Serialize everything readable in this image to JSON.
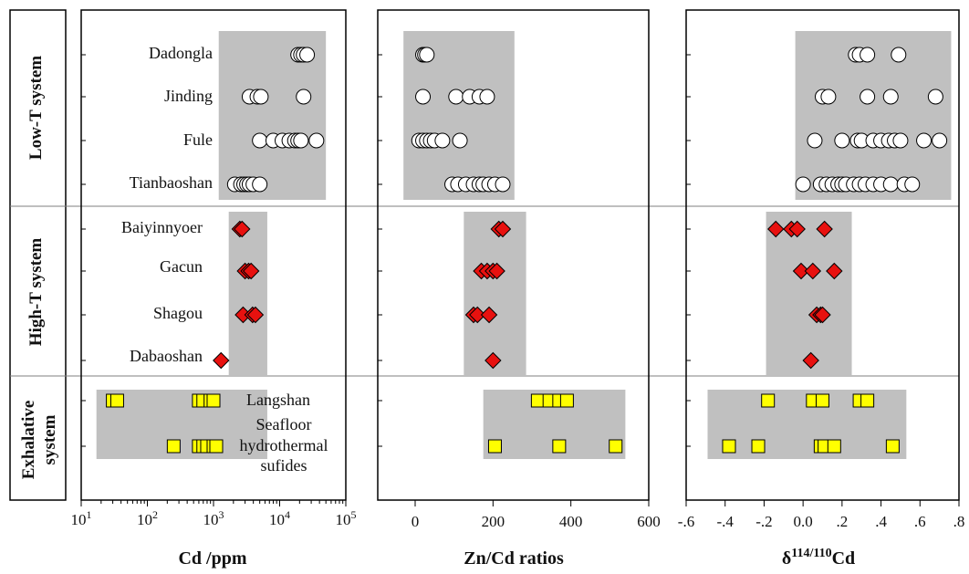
{
  "group_labels": {
    "low": "Low-T system",
    "high": "High-T system",
    "exhalative_line1": "Exhalative",
    "exhalative_line2": "system"
  },
  "panel_labels": {
    "low": [
      "Dadongla",
      "Jinding",
      "Fule",
      "Tianbaoshan"
    ],
    "high": [
      "Baiyinnyoer",
      "Gacun",
      "Shagou",
      "Dabaoshan"
    ],
    "exhalative_langshan": "Langshan",
    "exhalative_seafloor": [
      "Seafloor",
      "hydrothermal",
      "sufides"
    ]
  },
  "axis_labels": {
    "cd": "Cd /ppm",
    "zncd": "Zn/Cd ratios",
    "delta_prefix": "δ",
    "delta_sup": "114/110",
    "delta_suffix": "Cd"
  },
  "ticks": {
    "cd_base": "10",
    "cd_exponents": [
      "1",
      "2",
      "3",
      "4",
      "5"
    ],
    "zncd": [
      "0",
      "200",
      "400",
      "600"
    ],
    "delta": [
      "-.6",
      "-.4",
      "-.2",
      "0.0",
      ".2",
      ".4",
      ".6",
      ".8"
    ]
  },
  "colors": {
    "band": "#c0c0c0",
    "low_marker_fill": "#ffffff",
    "high_marker_fill": "#e8110f",
    "exhalative_marker_fill": "#ffff00",
    "marker_stroke": "#000000",
    "separator": "#7f7f7f"
  },
  "chart_data": [
    {
      "type": "scatter",
      "title": "",
      "xlabel": "Cd /ppm",
      "xscale": "log",
      "xlim": [
        10,
        100000
      ],
      "categories": [
        "Dadongla",
        "Jinding",
        "Fule",
        "Tianbaoshan",
        "Baiyinnyoer",
        "Gacun",
        "Shagou",
        "Dabaoshan",
        "Langshan",
        "Seafloor hydrothermal sufides"
      ],
      "bands": [
        {
          "group": "Low-T system",
          "x_range": [
            1200,
            50000
          ]
        },
        {
          "group": "High-T system",
          "x_range": [
            1700,
            6500
          ]
        },
        {
          "group": "Exhalative system",
          "x_range": [
            17,
            6500
          ]
        }
      ],
      "series": [
        {
          "name": "Dadongla",
          "marker": "circle",
          "values": [
            19000,
            21000,
            23000,
            26000
          ]
        },
        {
          "name": "Jinding",
          "marker": "circle",
          "values": [
            3500,
            4600,
            5200,
            23000
          ]
        },
        {
          "name": "Fule",
          "marker": "circle",
          "values": [
            5000,
            8000,
            11000,
            14000,
            17000,
            19000,
            21000,
            36000
          ]
        },
        {
          "name": "Tianbaoshan",
          "marker": "circle",
          "values": [
            2100,
            2600,
            2900,
            3200,
            3500,
            4000,
            5000
          ]
        },
        {
          "name": "Baiyinnyoer",
          "marker": "diamond",
          "values": [
            2500,
            2700
          ]
        },
        {
          "name": "Gacun",
          "marker": "diamond",
          "values": [
            3000,
            3400,
            3700
          ]
        },
        {
          "name": "Shagou",
          "marker": "diamond",
          "values": [
            2800,
            3900,
            4300
          ]
        },
        {
          "name": "Dabaoshan",
          "marker": "diamond",
          "values": [
            1300
          ]
        },
        {
          "name": "Langshan",
          "marker": "square",
          "values": [
            30,
            35,
            600,
            700,
            900,
            1000
          ]
        },
        {
          "name": "Seafloor hydrothermal sufides",
          "marker": "square",
          "values": [
            250,
            600,
            700,
            800,
            1000,
            1100
          ]
        }
      ]
    },
    {
      "type": "scatter",
      "title": "",
      "xlabel": "Zn/Cd ratios",
      "xlim": [
        -85,
        600
      ],
      "bands": [
        {
          "group": "Low-T system",
          "x_range": [
            -30,
            255
          ]
        },
        {
          "group": "High-T system",
          "x_range": [
            125,
            285
          ]
        },
        {
          "group": "Exhalative system",
          "x_range": [
            175,
            540
          ]
        }
      ],
      "series": [
        {
          "name": "Dadongla",
          "marker": "circle",
          "values": [
            20,
            25,
            30
          ]
        },
        {
          "name": "Jinding",
          "marker": "circle",
          "values": [
            20,
            105,
            140,
            165,
            185
          ]
        },
        {
          "name": "Fule",
          "marker": "circle",
          "values": [
            10,
            20,
            30,
            40,
            50,
            70,
            115
          ]
        },
        {
          "name": "Tianbaoshan",
          "marker": "circle",
          "values": [
            95,
            110,
            130,
            150,
            165,
            175,
            190,
            205,
            225
          ]
        },
        {
          "name": "Baiyinnyoer",
          "marker": "diamond",
          "values": [
            215,
            225
          ]
        },
        {
          "name": "Gacun",
          "marker": "diamond",
          "values": [
            170,
            185,
            200,
            210
          ]
        },
        {
          "name": "Shagou",
          "marker": "diamond",
          "values": [
            150,
            160,
            190
          ]
        },
        {
          "name": "Dabaoshan",
          "marker": "diamond",
          "values": [
            200
          ]
        },
        {
          "name": "Langshan",
          "marker": "square",
          "values": [
            315,
            345,
            370,
            390
          ]
        },
        {
          "name": "Seafloor hydrothermal sufides",
          "marker": "square",
          "values": [
            205,
            370,
            515
          ]
        }
      ]
    },
    {
      "type": "scatter",
      "title": "",
      "xlabel": "δ114/110Cd",
      "xlim": [
        -0.6,
        0.8
      ],
      "bands": [
        {
          "group": "Low-T system",
          "x_range": [
            -0.04,
            0.76
          ]
        },
        {
          "group": "High-T system",
          "x_range": [
            -0.19,
            0.25
          ]
        },
        {
          "group": "Exhalative system",
          "x_range": [
            -0.49,
            0.53
          ]
        }
      ],
      "series": [
        {
          "name": "Dadongla",
          "marker": "circle",
          "values": [
            0.27,
            0.29,
            0.33,
            0.49
          ]
        },
        {
          "name": "Jinding",
          "marker": "circle",
          "values": [
            0.1,
            0.13,
            0.33,
            0.45,
            0.68
          ]
        },
        {
          "name": "Fule",
          "marker": "circle",
          "values": [
            0.06,
            0.2,
            0.28,
            0.3,
            0.36,
            0.4,
            0.44,
            0.47,
            0.5,
            0.62,
            0.7
          ]
        },
        {
          "name": "Tianbaoshan",
          "marker": "circle",
          "values": [
            0.0,
            0.09,
            0.12,
            0.15,
            0.18,
            0.2,
            0.22,
            0.26,
            0.29,
            0.32,
            0.36,
            0.4,
            0.45,
            0.52,
            0.56
          ]
        },
        {
          "name": "Baiyinnyoer",
          "marker": "diamond",
          "values": [
            -0.14,
            -0.06,
            -0.03,
            0.11
          ]
        },
        {
          "name": "Gacun",
          "marker": "diamond",
          "values": [
            -0.01,
            0.05,
            0.16
          ]
        },
        {
          "name": "Shagou",
          "marker": "diamond",
          "values": [
            0.07,
            0.09,
            0.1
          ]
        },
        {
          "name": "Dabaoshan",
          "marker": "diamond",
          "values": [
            0.04
          ]
        },
        {
          "name": "Langshan",
          "marker": "square",
          "values": [
            -0.18,
            0.05,
            0.1,
            0.29,
            0.33
          ]
        },
        {
          "name": "Seafloor hydrothermal sufides",
          "marker": "square",
          "values": [
            -0.38,
            -0.23,
            0.09,
            0.11,
            0.16,
            0.46
          ]
        }
      ]
    }
  ]
}
